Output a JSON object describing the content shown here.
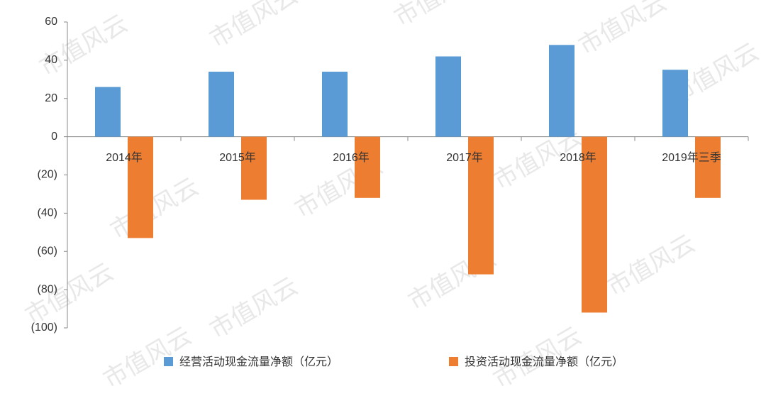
{
  "chart_data": {
    "type": "bar",
    "watermark": "市值风云",
    "categories": [
      "2014年",
      "2015年",
      "2016年",
      "2017年",
      "2018年",
      "2019年三季"
    ],
    "series": [
      {
        "name": "经营活动现金流量净额（亿元）",
        "color": "#5b9bd5",
        "values": [
          26,
          34,
          34,
          42,
          48,
          35
        ]
      },
      {
        "name": "投资活动现金流量净额（亿元）",
        "color": "#ed7d31",
        "values": [
          -53,
          -33,
          -32,
          -72,
          -92,
          -32
        ]
      }
    ],
    "ylim": [
      -100,
      60
    ],
    "yticks": [
      60,
      40,
      20,
      0,
      {
        "value": -20,
        "label": "(20)"
      },
      {
        "value": -40,
        "label": "(40)"
      },
      {
        "value": -60,
        "label": "(60)"
      },
      {
        "value": -80,
        "label": "(80)"
      },
      {
        "value": -100,
        "label": "(100)"
      }
    ],
    "negative_tick_color": "#c00000",
    "grid": false
  }
}
